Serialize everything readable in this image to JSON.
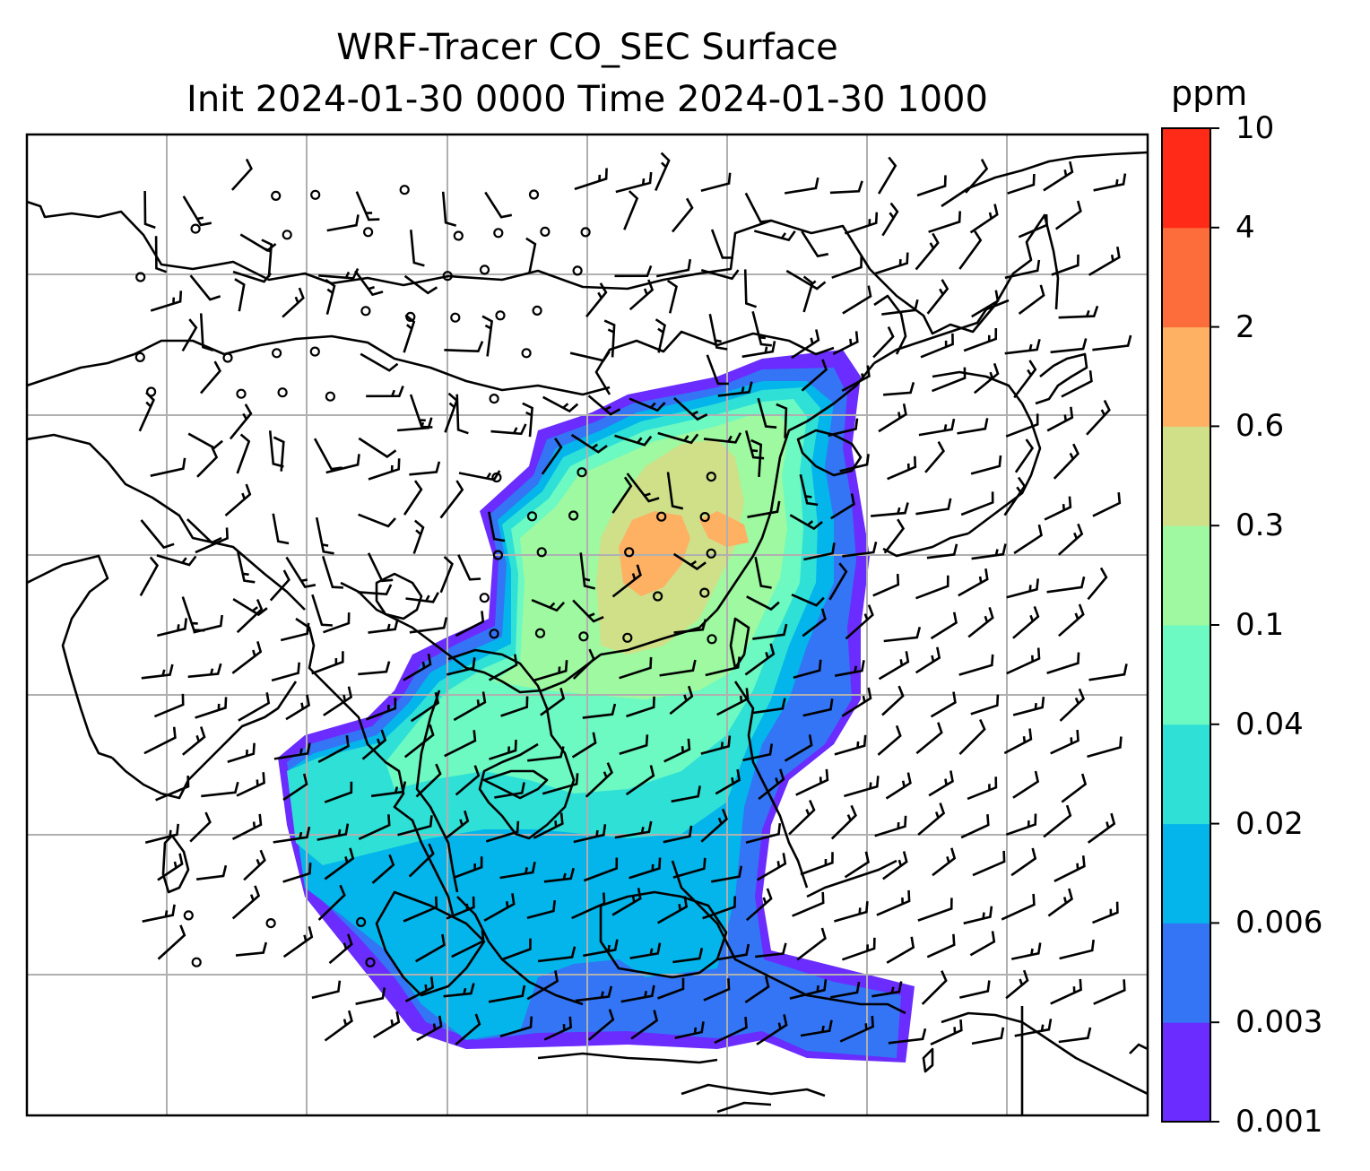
{
  "title": {
    "line1": "WRF-Tracer CO_SEC Surface",
    "line2": "Init 2024-01-30 0000 Time 2024-01-30 1000"
  },
  "colorbar": {
    "unit": "ppm",
    "levels": [
      "0.001",
      "0.003",
      "0.006",
      "0.02",
      "0.04",
      "0.1",
      "0.3",
      "0.6",
      "2",
      "4",
      "10"
    ],
    "colors": [
      "#6a2cff",
      "#3375f5",
      "#03b5ea",
      "#2fe0d6",
      "#6cf9c2",
      "#9ef9a0",
      "#cfe089",
      "#feb063",
      "#fd6d3b",
      "#ff2a17"
    ]
  },
  "map": {
    "gridline_color": "#b0b0b0",
    "coastline_color": "#000000",
    "barb_color": "#000000"
  }
}
